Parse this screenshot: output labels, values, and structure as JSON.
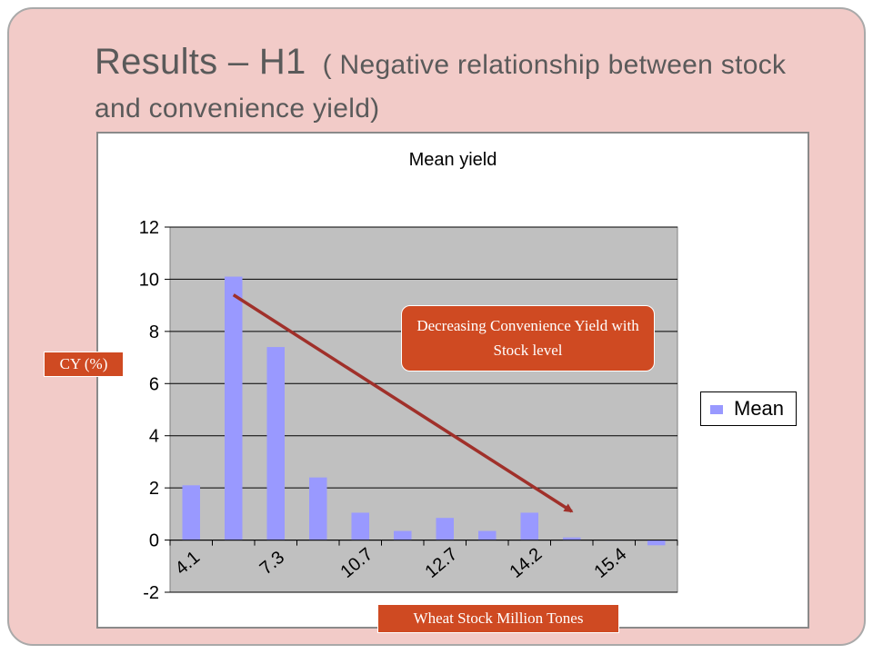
{
  "slide": {
    "title_main": "Results – H1",
    "title_sub": "( Negative relationship between stock and convenience yield)"
  },
  "annotations": {
    "callout": "Decreasing Convenience Yield with Stock level",
    "y_tag": "CY (%)",
    "x_tag": "Wheat Stock Million Tones"
  },
  "colors": {
    "bar": "#9999ff",
    "plot_bg": "#c0c0c0",
    "arrow": "#a0302a",
    "tag_bg": "#cf4a22",
    "slide_bg": "#f2cbc8"
  },
  "chart_data": {
    "type": "bar",
    "title": "Mean yield",
    "categories": [
      "4.1",
      "",
      "7.3",
      "",
      "10.7",
      "",
      "12.7",
      "",
      "14.2",
      "",
      "15.4",
      ""
    ],
    "series": [
      {
        "name": "Mean",
        "values": [
          2.1,
          10.1,
          7.4,
          2.4,
          1.05,
          0.35,
          0.85,
          0.35,
          1.05,
          0.1,
          0,
          -0.2
        ]
      }
    ],
    "ylim": [
      -2,
      12
    ],
    "yticks": [
      -2,
      0,
      2,
      4,
      6,
      8,
      10,
      12
    ],
    "grid": true,
    "legend": "right",
    "trend_arrow": {
      "from": [
        1.5,
        9.4
      ],
      "to": [
        9.5,
        1.1
      ]
    }
  }
}
